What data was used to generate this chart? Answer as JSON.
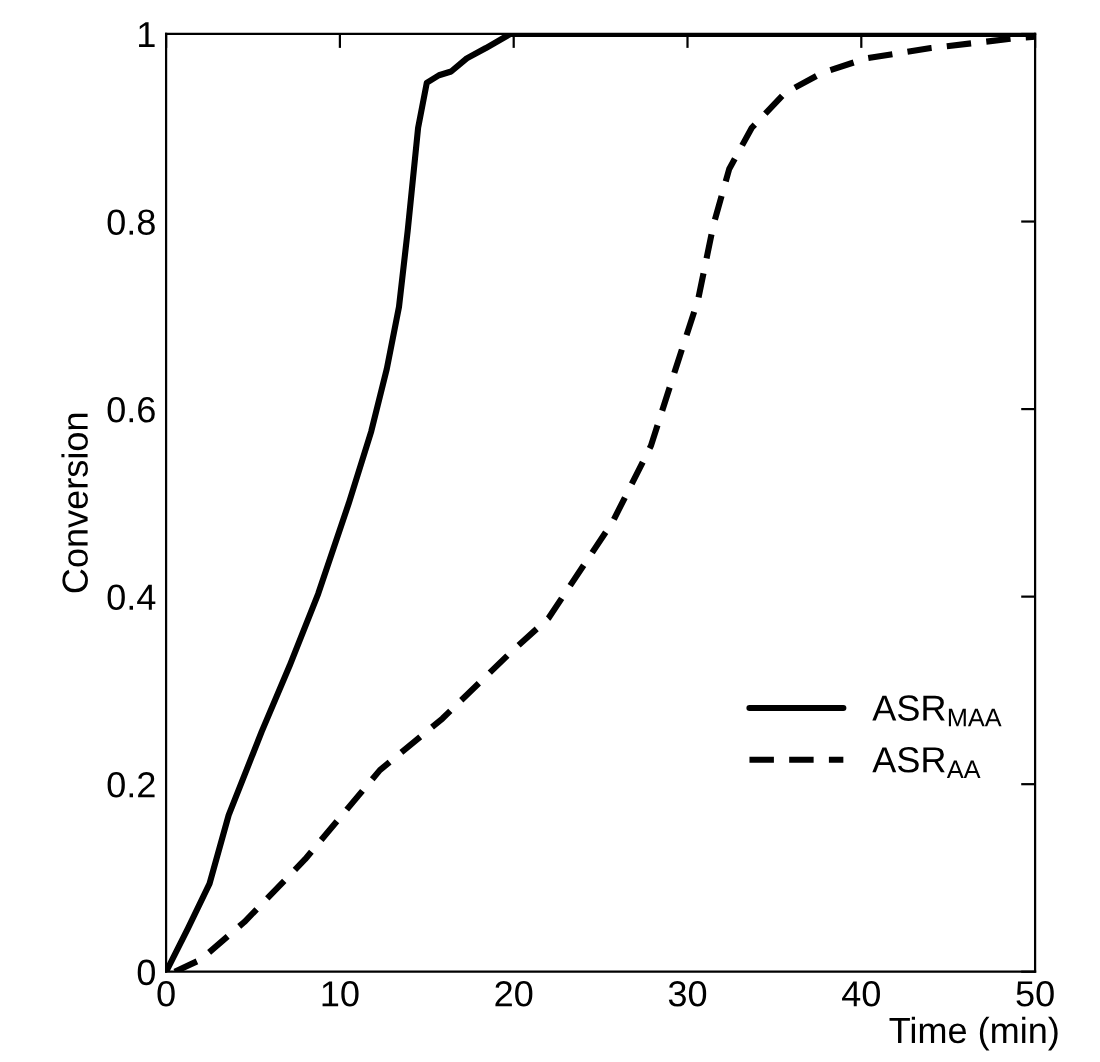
{
  "chart_data": {
    "type": "line",
    "xlabel": "Time (min)",
    "ylabel": "Conversion",
    "xlim": [
      0,
      50
    ],
    "ylim": [
      0,
      1
    ],
    "xticks": [
      0,
      10,
      20,
      30,
      40,
      50
    ],
    "yticks": [
      0,
      0.2,
      0.4,
      0.6,
      0.8,
      1
    ],
    "grid": false,
    "legend": "bottom right",
    "marker": "none",
    "series": [
      {
        "name": "ASR$_{MAA}$",
        "color": "#000000",
        "line_style": "solid",
        "x": [
          0,
          1.25,
          2.5,
          3.6,
          5.5,
          7.1,
          8.75,
          10.5,
          11.8,
          12.7,
          13.4,
          13.9,
          14.5,
          15.0,
          15.7,
          16.4,
          17.3,
          18.4,
          19.8,
          25,
          30,
          40,
          50
        ],
        "values": [
          0,
          0.046,
          0.094,
          0.167,
          0.256,
          0.326,
          0.403,
          0.499,
          0.576,
          0.643,
          0.709,
          0.79,
          0.9,
          0.948,
          0.956,
          0.96,
          0.974,
          0.985,
          1,
          1,
          1,
          1,
          1
        ]
      },
      {
        "name": "ASR$_{AA}$",
        "color": "#000000",
        "line_style": "dashed",
        "x": [
          0.5,
          2,
          4.5,
          8,
          12.3,
          15.9,
          19.8,
          22,
          25.7,
          27.9,
          29.3,
          30.6,
          31.5,
          32.4,
          33.7,
          35.6,
          37.8,
          40.3,
          44,
          49.1,
          50
        ],
        "values": [
          0,
          0.013,
          0.053,
          0.12,
          0.215,
          0.27,
          0.34,
          0.377,
          0.48,
          0.561,
          0.642,
          0.716,
          0.797,
          0.856,
          0.9,
          0.937,
          0.959,
          0.974,
          0.985,
          0.996,
          0.997
        ]
      }
    ]
  }
}
